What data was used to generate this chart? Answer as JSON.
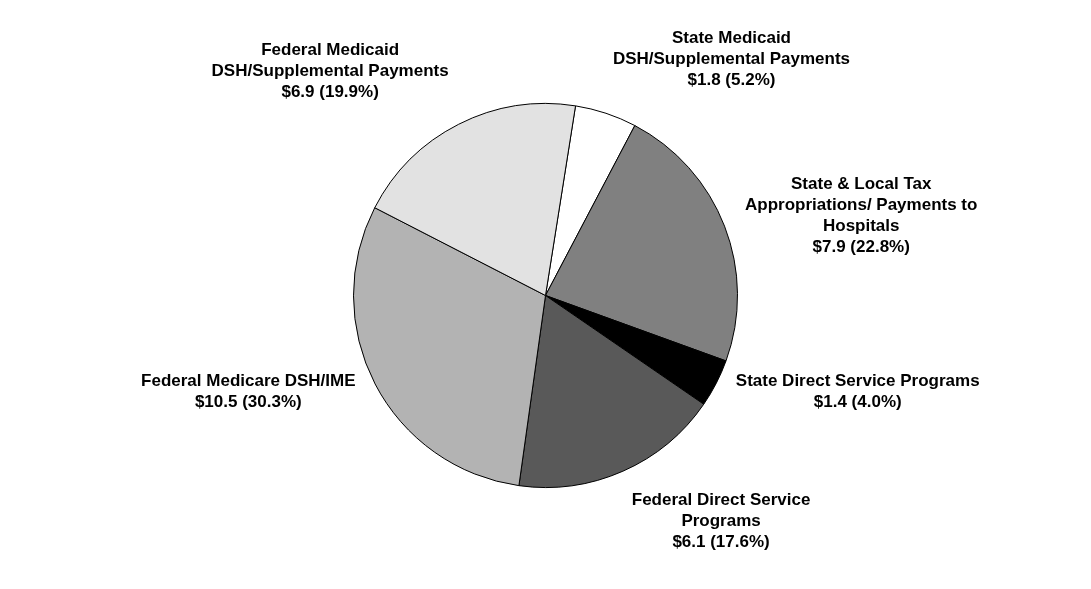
{
  "chart_data": {
    "type": "pie",
    "categories": [
      "State Medicaid DSH/Supplemental Payments",
      "State & Local Tax Appropriations/ Payments to Hospitals",
      "State Direct Service Programs",
      "Federal Direct Service Programs",
      "Federal Medicare DSH/IME",
      "Federal Medicaid DSH/Supplemental Payments"
    ],
    "values": [
      1.8,
      7.9,
      1.4,
      6.1,
      10.5,
      6.9
    ],
    "value_labels": [
      "$1.8 (5.2%)",
      "$7.9 (22.8%)",
      "$1.4 (4.0%)",
      "$6.1 (17.6%)",
      "$10.5 (30.3%)",
      "$6.9 (19.9%)"
    ],
    "colors": [
      "#ffffff",
      "#808080",
      "#000000",
      "#595959",
      "#b3b3b3",
      "#e2e2e2"
    ],
    "legend": false
  }
}
